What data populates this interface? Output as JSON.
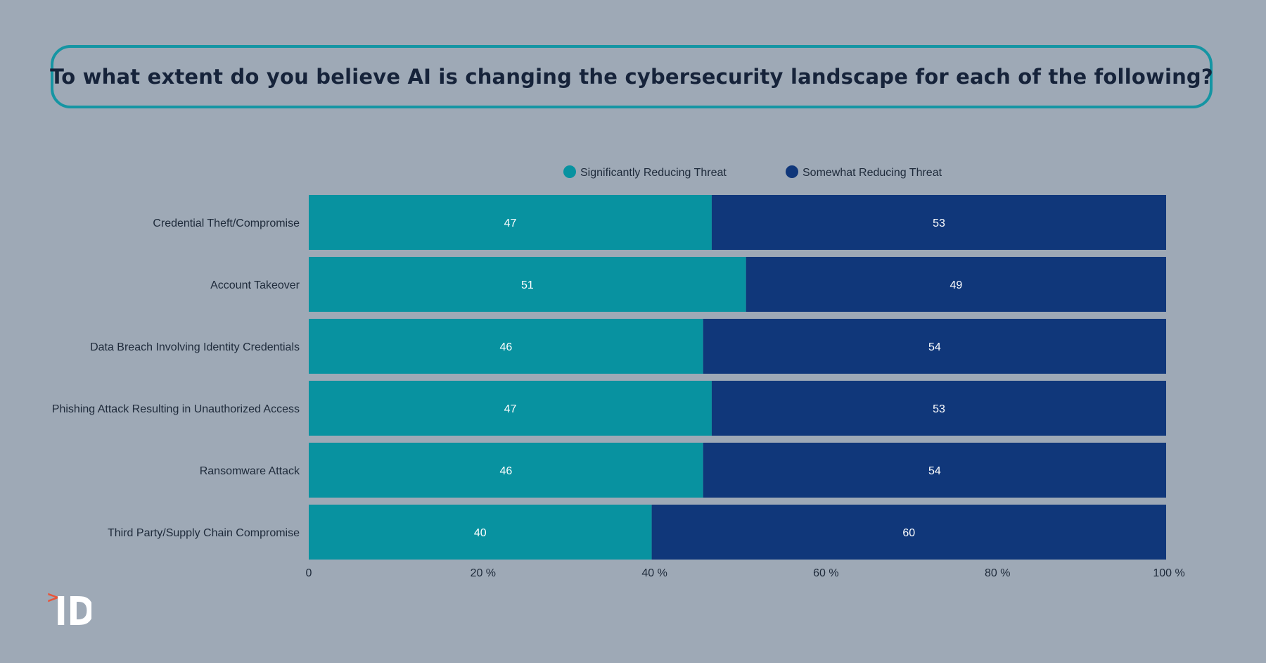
{
  "title": "To what extent do you believe AI is changing the cybersecurity landscape for each of the following?",
  "logo": {
    "mark": ">",
    "text": "ID"
  },
  "colors": {
    "background": "#9ea9b6",
    "title_border": "#1595a3",
    "title_text": "#16233a",
    "series_1": "#0892a0",
    "series_2": "#10377a",
    "label_text": "#1e2a3a",
    "value_text": "#ffffff",
    "logo_mark": "#e8553a",
    "logo_text": "#ffffff"
  },
  "chart_data": {
    "type": "bar",
    "orientation": "horizontal",
    "stacked": true,
    "categories": [
      "Credential Theft/Compromise",
      "Account Takeover",
      "Data Breach Involving Identity Credentials",
      "Phishing Attack Resulting in Unauthorized Access",
      "Ransomware Attack",
      "Third Party/Supply Chain Compromise"
    ],
    "series": [
      {
        "name": "Significantly Reducing Threat",
        "values": [
          47,
          51,
          46,
          47,
          46,
          40
        ]
      },
      {
        "name": "Somewhat Reducing Threat",
        "values": [
          53,
          49,
          54,
          53,
          54,
          60
        ]
      }
    ],
    "xlim": [
      0,
      100
    ],
    "x_ticks": [
      {
        "value": 0,
        "label": "0"
      },
      {
        "value": 20,
        "label": "20 %"
      },
      {
        "value": 40,
        "label": "40 %"
      },
      {
        "value": 60,
        "label": "60 %"
      },
      {
        "value": 80,
        "label": "80 %"
      },
      {
        "value": 100,
        "label": "100 %"
      }
    ],
    "legend_position": "top",
    "grid": false,
    "data_labels": true
  }
}
